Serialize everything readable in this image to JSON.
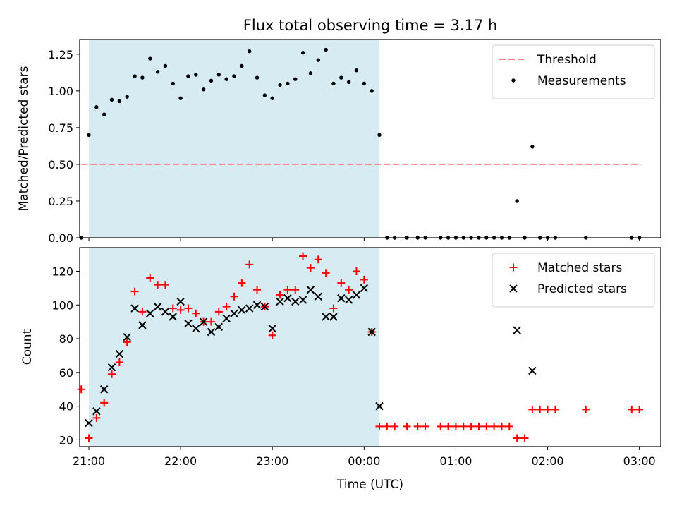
{
  "figure": {
    "title": "Flux total observing time = 3.17 h",
    "xlabel": "Time (UTC)"
  },
  "colors": {
    "shade": "#add8e6",
    "threshold": "#ff8080",
    "measurements": "#000000",
    "matched": "#ff0000",
    "predicted": "#000000"
  },
  "chart_data": [
    {
      "type": "scatter",
      "ylabel": "Matched/Predicted stars",
      "ylim": [
        0,
        1.35
      ],
      "xlim": [
        "20:54",
        "03:14"
      ],
      "yticks": [
        "0.00",
        "0.25",
        "0.50",
        "0.75",
        "1.00",
        "1.25"
      ],
      "shaded_interval": [
        "21:00",
        "00:10"
      ],
      "threshold": {
        "value": 0.5,
        "x_start": "20:55",
        "x_end": "03:01"
      },
      "legend": [
        "Threshold",
        "Measurements"
      ],
      "legend_position": "upper right",
      "series": [
        {
          "name": "Measurements",
          "points": [
            [
              "20:55",
              0.0
            ],
            [
              "21:00",
              0.7
            ],
            [
              "21:05",
              0.89
            ],
            [
              "21:10",
              0.84
            ],
            [
              "21:15",
              0.94
            ],
            [
              "21:20",
              0.93
            ],
            [
              "21:25",
              0.96
            ],
            [
              "21:30",
              1.1
            ],
            [
              "21:35",
              1.09
            ],
            [
              "21:40",
              1.22
            ],
            [
              "21:45",
              1.13
            ],
            [
              "21:50",
              1.17
            ],
            [
              "21:55",
              1.05
            ],
            [
              "22:00",
              0.95
            ],
            [
              "22:05",
              1.1
            ],
            [
              "22:10",
              1.11
            ],
            [
              "22:15",
              1.01
            ],
            [
              "22:20",
              1.07
            ],
            [
              "22:25",
              1.11
            ],
            [
              "22:30",
              1.08
            ],
            [
              "22:35",
              1.1
            ],
            [
              "22:40",
              1.17
            ],
            [
              "22:45",
              1.27
            ],
            [
              "22:50",
              1.09
            ],
            [
              "22:55",
              0.97
            ],
            [
              "23:00",
              0.95
            ],
            [
              "23:05",
              1.04
            ],
            [
              "23:10",
              1.05
            ],
            [
              "23:15",
              1.08
            ],
            [
              "23:20",
              1.26
            ],
            [
              "23:25",
              1.12
            ],
            [
              "23:30",
              1.21
            ],
            [
              "23:35",
              1.28
            ],
            [
              "23:40",
              1.05
            ],
            [
              "23:45",
              1.09
            ],
            [
              "23:50",
              1.06
            ],
            [
              "23:55",
              1.14
            ],
            [
              "00:00",
              1.05
            ],
            [
              "00:05",
              1.0
            ],
            [
              "00:10",
              0.7
            ],
            [
              "00:15",
              0.0
            ],
            [
              "00:20",
              0.0
            ],
            [
              "00:28",
              0.0
            ],
            [
              "00:35",
              0.0
            ],
            [
              "00:40",
              0.0
            ],
            [
              "00:50",
              0.0
            ],
            [
              "00:55",
              0.0
            ],
            [
              "01:00",
              0.0
            ],
            [
              "01:05",
              0.0
            ],
            [
              "01:10",
              0.0
            ],
            [
              "01:15",
              0.0
            ],
            [
              "01:20",
              0.0
            ],
            [
              "01:25",
              0.0
            ],
            [
              "01:30",
              0.0
            ],
            [
              "01:35",
              0.0
            ],
            [
              "01:40",
              0.25
            ],
            [
              "01:45",
              0.0
            ],
            [
              "01:50",
              0.62
            ],
            [
              "01:55",
              0.0
            ],
            [
              "02:00",
              0.0
            ],
            [
              "02:05",
              0.0
            ],
            [
              "02:25",
              0.0
            ],
            [
              "02:55",
              0.0
            ],
            [
              "03:00",
              0.0
            ]
          ]
        }
      ]
    },
    {
      "type": "scatter",
      "ylabel": "Count",
      "ylim": [
        16,
        134
      ],
      "xlim": [
        "20:54",
        "03:14"
      ],
      "yticks": [
        "20",
        "40",
        "60",
        "80",
        "100",
        "120"
      ],
      "xticks": [
        "21:00",
        "22:00",
        "23:00",
        "00:00",
        "01:00",
        "02:00",
        "03:00"
      ],
      "shaded_interval": [
        "21:00",
        "00:10"
      ],
      "legend": [
        "Matched stars",
        "Predicted stars"
      ],
      "legend_position": "upper right",
      "series": [
        {
          "name": "Matched stars",
          "marker": "+",
          "points": [
            [
              "20:55",
              50
            ],
            [
              "21:00",
              21
            ],
            [
              "21:05",
              33
            ],
            [
              "21:10",
              42
            ],
            [
              "21:15",
              59
            ],
            [
              "21:20",
              66
            ],
            [
              "21:25",
              78
            ],
            [
              "21:30",
              108
            ],
            [
              "21:35",
              96
            ],
            [
              "21:40",
              116
            ],
            [
              "21:45",
              112
            ],
            [
              "21:50",
              112
            ],
            [
              "21:55",
              98
            ],
            [
              "22:00",
              97
            ],
            [
              "22:05",
              98
            ],
            [
              "22:10",
              95
            ],
            [
              "22:15",
              90
            ],
            [
              "22:20",
              90
            ],
            [
              "22:25",
              96
            ],
            [
              "22:30",
              99
            ],
            [
              "22:35",
              105
            ],
            [
              "22:40",
              113
            ],
            [
              "22:45",
              124
            ],
            [
              "22:50",
              109
            ],
            [
              "22:55",
              99
            ],
            [
              "23:00",
              82
            ],
            [
              "23:05",
              106
            ],
            [
              "23:10",
              109
            ],
            [
              "23:15",
              109
            ],
            [
              "23:20",
              129
            ],
            [
              "23:25",
              122
            ],
            [
              "23:30",
              127
            ],
            [
              "23:35",
              119
            ],
            [
              "23:40",
              98
            ],
            [
              "23:45",
              113
            ],
            [
              "23:50",
              109
            ],
            [
              "23:55",
              120
            ],
            [
              "00:00",
              115
            ],
            [
              "00:05",
              84
            ],
            [
              "00:10",
              28
            ],
            [
              "00:15",
              28
            ],
            [
              "00:20",
              28
            ],
            [
              "00:28",
              28
            ],
            [
              "00:35",
              28
            ],
            [
              "00:40",
              28
            ],
            [
              "00:50",
              28
            ],
            [
              "00:55",
              28
            ],
            [
              "01:00",
              28
            ],
            [
              "01:05",
              28
            ],
            [
              "01:10",
              28
            ],
            [
              "01:15",
              28
            ],
            [
              "01:20",
              28
            ],
            [
              "01:25",
              28
            ],
            [
              "01:30",
              28
            ],
            [
              "01:35",
              28
            ],
            [
              "01:40",
              21
            ],
            [
              "01:45",
              21
            ],
            [
              "01:50",
              38
            ],
            [
              "01:55",
              38
            ],
            [
              "02:00",
              38
            ],
            [
              "02:05",
              38
            ],
            [
              "02:25",
              38
            ],
            [
              "02:55",
              38
            ],
            [
              "03:00",
              38
            ]
          ]
        },
        {
          "name": "Predicted stars",
          "marker": "x",
          "points": [
            [
              "21:00",
              30
            ],
            [
              "21:05",
              37
            ],
            [
              "21:10",
              50
            ],
            [
              "21:15",
              63
            ],
            [
              "21:20",
              71
            ],
            [
              "21:25",
              81
            ],
            [
              "21:30",
              98
            ],
            [
              "21:35",
              88
            ],
            [
              "21:40",
              95
            ],
            [
              "21:45",
              99
            ],
            [
              "21:50",
              96
            ],
            [
              "21:55",
              93
            ],
            [
              "22:00",
              102
            ],
            [
              "22:05",
              89
            ],
            [
              "22:10",
              86
            ],
            [
              "22:15",
              90
            ],
            [
              "22:20",
              84
            ],
            [
              "22:25",
              87
            ],
            [
              "22:30",
              92
            ],
            [
              "22:35",
              95
            ],
            [
              "22:40",
              97
            ],
            [
              "22:45",
              98
            ],
            [
              "22:50",
              100
            ],
            [
              "22:55",
              99
            ],
            [
              "23:00",
              86
            ],
            [
              "23:05",
              102
            ],
            [
              "23:10",
              104
            ],
            [
              "23:15",
              102
            ],
            [
              "23:20",
              103
            ],
            [
              "23:25",
              109
            ],
            [
              "23:30",
              105
            ],
            [
              "23:35",
              93
            ],
            [
              "23:40",
              93
            ],
            [
              "23:45",
              104
            ],
            [
              "23:50",
              103
            ],
            [
              "23:55",
              106
            ],
            [
              "00:00",
              110
            ],
            [
              "00:05",
              84
            ],
            [
              "00:10",
              40
            ],
            [
              "01:40",
              85
            ],
            [
              "01:50",
              61
            ]
          ]
        }
      ]
    }
  ]
}
